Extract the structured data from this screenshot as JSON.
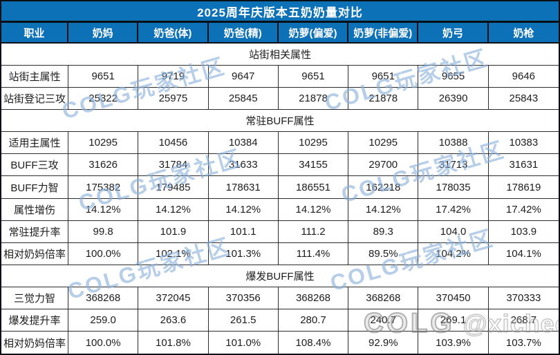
{
  "colors": {
    "accent": "#0d71b8",
    "dark_border": "#0a0e15",
    "cell_border": "#2a2a2a",
    "watermark_blue": "#8ab0db",
    "credit_gray": "#9a9a9a"
  },
  "watermark": {
    "tile_text": "COLG玩家社区",
    "credit_logo": "COLG",
    "credit_handle": "@xichechen"
  },
  "chart_data": {
    "type": "table",
    "title": "2025周年庆版本五奶奶量对比",
    "columns": [
      "职业",
      "奶妈",
      "奶爸(体)",
      "奶爸(精)",
      "奶萝(偏爱)",
      "奶萝(非偏爱)",
      "奶弓",
      "奶枪"
    ],
    "sections": [
      {
        "header": "站街相关属性",
        "rows": [
          {
            "label": "站街主属性",
            "values": [
              "9651",
              "9719",
              "9647",
              "9651",
              "9651",
              "9655",
              "9646"
            ]
          },
          {
            "label": "站街登记三攻",
            "values": [
              "25322",
              "25975",
              "25845",
              "21878",
              "21878",
              "26390",
              "25843"
            ]
          }
        ]
      },
      {
        "header": "常驻BUFF属性",
        "rows": [
          {
            "label": "适用主属性",
            "values": [
              "10295",
              "10456",
              "10384",
              "10295",
              "10295",
              "10388",
              "10383"
            ]
          },
          {
            "label": "BUFF三攻",
            "values": [
              "31626",
              "31784",
              "31633",
              "34155",
              "29700",
              "31713",
              "31631"
            ]
          },
          {
            "label": "BUFF力智",
            "values": [
              "175382",
              "179485",
              "178631",
              "186551",
              "162218",
              "178035",
              "178619"
            ]
          },
          {
            "label": "属性增伤",
            "values": [
              "14.12%",
              "14.12%",
              "14.12%",
              "14.12%",
              "14.12%",
              "17.42%",
              "17.42%"
            ]
          },
          {
            "label": "常驻提升率",
            "values": [
              "99.8",
              "101.9",
              "101.1",
              "111.2",
              "89.3",
              "104.0",
              "103.9"
            ]
          },
          {
            "label": "相对奶妈倍率",
            "values": [
              "100.0%",
              "102.1%",
              "101.3%",
              "111.4%",
              "89.5%",
              "104.2%",
              "104.1%"
            ]
          }
        ]
      },
      {
        "header": "爆发BUFF属性",
        "rows": [
          {
            "label": "三觉力智",
            "values": [
              "368268",
              "372045",
              "370356",
              "368268",
              "368268",
              "370450",
              "370333"
            ]
          },
          {
            "label": "爆发提升率",
            "values": [
              "259.0",
              "263.6",
              "261.5",
              "280.7",
              "240.7",
              "269.1",
              "268.7"
            ]
          },
          {
            "label": "相对奶妈倍率",
            "values": [
              "100.0%",
              "101.8%",
              "101.0%",
              "108.4%",
              "92.9%",
              "103.9%",
              "103.7%"
            ]
          }
        ]
      }
    ]
  }
}
